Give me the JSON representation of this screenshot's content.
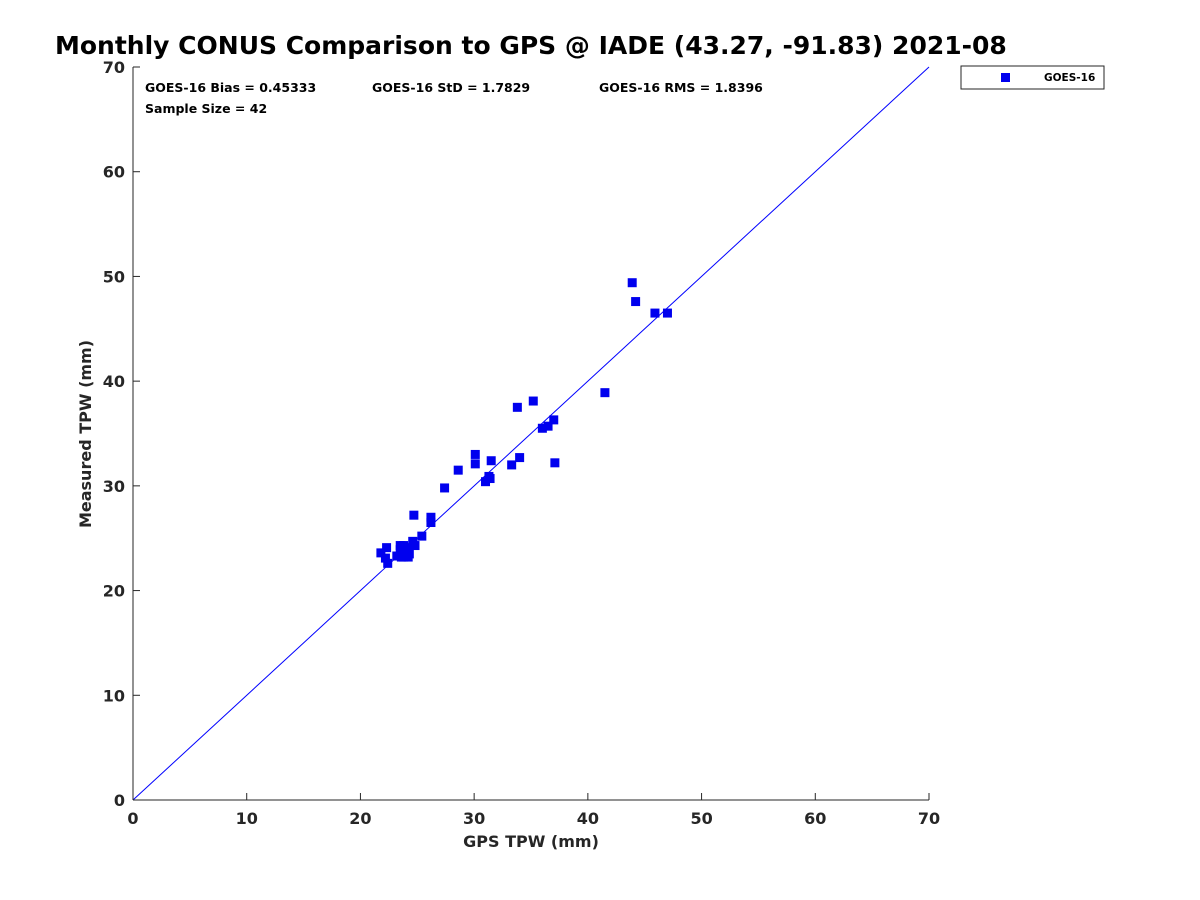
{
  "chart_data": {
    "type": "scatter",
    "title": "Monthly CONUS Comparison to GPS @ IADE (43.27, -91.83) 2021-08",
    "xlabel": "GPS TPW (mm)",
    "ylabel": "Measured TPW (mm)",
    "xlim": [
      0,
      70
    ],
    "ylim": [
      0,
      70
    ],
    "xticks": [
      0,
      10,
      20,
      30,
      40,
      50,
      60,
      70
    ],
    "yticks": [
      0,
      10,
      20,
      30,
      40,
      50,
      60,
      70
    ],
    "grid": false,
    "legend_position": "outside-top-right",
    "reference_line": {
      "from": [
        0,
        0
      ],
      "to": [
        70,
        70
      ],
      "color": "#0000ff"
    },
    "stats": {
      "bias": "GOES-16 Bias = 0.45333",
      "std": "GOES-16 StD = 1.7829",
      "rms": "GOES-16 RMS = 1.8396",
      "sample": "Sample Size = 42"
    },
    "series": [
      {
        "name": "GOES-16",
        "color": "#0000ee",
        "marker": "square",
        "points": [
          [
            43.9,
            49.4
          ],
          [
            44.2,
            47.6
          ],
          [
            45.9,
            46.5
          ],
          [
            47.0,
            46.5
          ],
          [
            41.5,
            38.9
          ],
          [
            35.2,
            38.1
          ],
          [
            33.8,
            37.5
          ],
          [
            37.0,
            36.3
          ],
          [
            36.5,
            35.7
          ],
          [
            36.0,
            35.5
          ],
          [
            30.1,
            33.0
          ],
          [
            30.1,
            32.1
          ],
          [
            31.5,
            32.4
          ],
          [
            34.0,
            32.7
          ],
          [
            33.3,
            32.0
          ],
          [
            37.1,
            32.2
          ],
          [
            28.6,
            31.5
          ],
          [
            31.3,
            30.9
          ],
          [
            31.0,
            30.4
          ],
          [
            31.4,
            30.7
          ],
          [
            27.4,
            29.8
          ],
          [
            24.7,
            27.2
          ],
          [
            26.2,
            27.0
          ],
          [
            26.2,
            26.5
          ],
          [
            25.4,
            25.2
          ],
          [
            24.6,
            24.7
          ],
          [
            24.8,
            24.3
          ],
          [
            22.3,
            24.1
          ],
          [
            23.5,
            24.3
          ],
          [
            23.8,
            24.3
          ],
          [
            21.8,
            23.6
          ],
          [
            23.2,
            23.3
          ],
          [
            23.6,
            23.6
          ],
          [
            24.0,
            23.8
          ],
          [
            24.3,
            23.5
          ],
          [
            23.8,
            23.2
          ],
          [
            24.2,
            23.2
          ],
          [
            23.5,
            23.9
          ],
          [
            24.1,
            24.1
          ],
          [
            22.2,
            23.1
          ],
          [
            22.4,
            22.6
          ],
          [
            23.6,
            23.2
          ]
        ]
      }
    ]
  }
}
